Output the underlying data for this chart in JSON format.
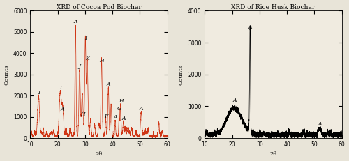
{
  "left_chart": {
    "title": "XRD of Cocoa Pod Biochar",
    "xlabel": "2θ",
    "ylabel": "Counts",
    "xlim": [
      10,
      60
    ],
    "ylim": [
      0,
      6000
    ],
    "yticks": [
      0,
      1000,
      2000,
      3000,
      4000,
      5000,
      6000
    ],
    "xticks": [
      10,
      20,
      30,
      40,
      50,
      60
    ],
    "color": "#cc2200",
    "bg_color": "#f0ebe0"
  },
  "right_chart": {
    "title": "XRD of Rice Husk Biochar",
    "xlabel": "2θ",
    "ylabel": "Counts",
    "xlim": [
      10,
      60
    ],
    "ylim": [
      0,
      4000
    ],
    "yticks": [
      0,
      1000,
      2000,
      3000,
      4000
    ],
    "xticks": [
      10,
      20,
      30,
      40,
      50,
      60
    ],
    "color": "#000000",
    "bg_color": "#f0ebe0"
  },
  "fig_bg_color": "#e8e4d8",
  "figsize": [
    5.0,
    2.31
  ],
  "dpi": 100
}
